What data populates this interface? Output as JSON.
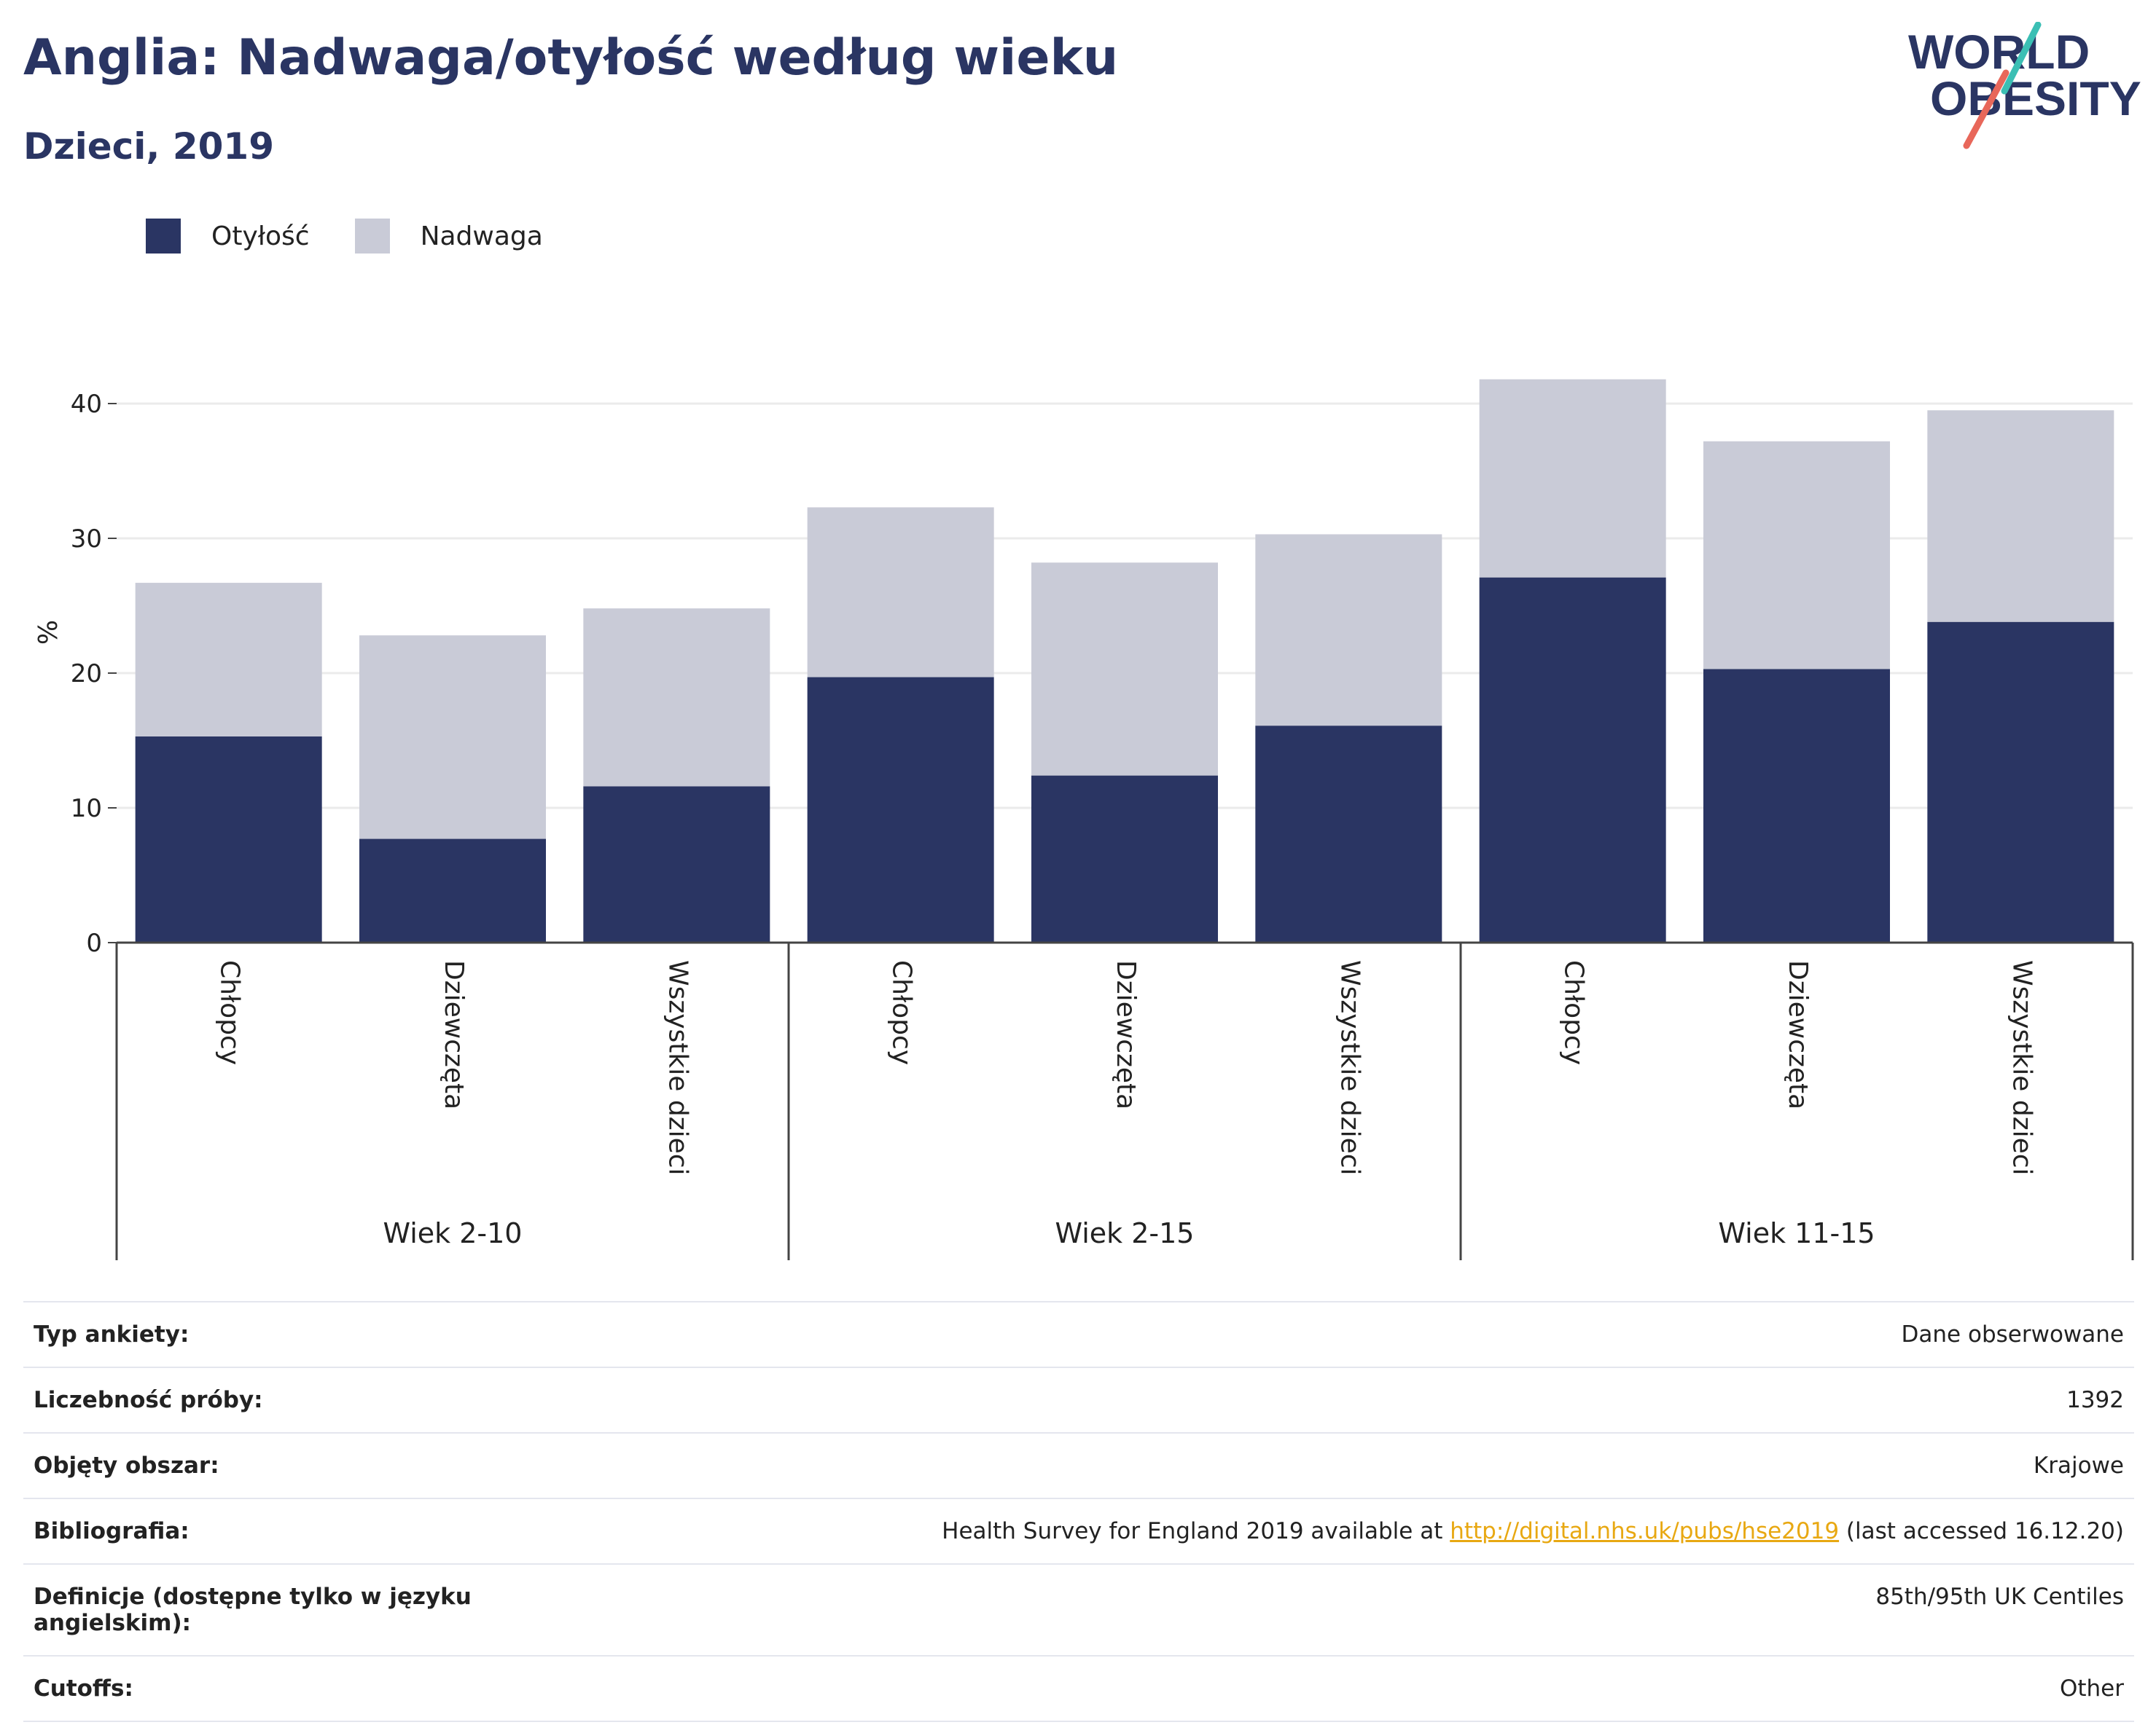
{
  "header": {
    "title": "Anglia: Nadwaga/otyłość według wieku",
    "subtitle": "Dzieci, 2019"
  },
  "logo": {
    "line1": "WORLD",
    "line2": "OBESITY",
    "accent_teal": "#3bbfb4",
    "accent_coral": "#e8675a"
  },
  "colors": {
    "obesity": "#2a3563",
    "overweight": "#c9cbd7",
    "grid": "#ebebeb",
    "axis": "#444444",
    "link": "#e8a812"
  },
  "chart_data": {
    "type": "bar",
    "stacked": true,
    "ylabel": "%",
    "ylim": [
      0,
      44
    ],
    "yticks": [
      0,
      10,
      20,
      30,
      40
    ],
    "grid": true,
    "legend_position": "top-left",
    "groups": [
      {
        "label": "Wiek 2-10",
        "categories": [
          "Chłopcy",
          "Dziewczęta",
          "Wszystkie dzieci"
        ]
      },
      {
        "label": "Wiek 2-15",
        "categories": [
          "Chłopcy",
          "Dziewczęta",
          "Wszystkie dzieci"
        ]
      },
      {
        "label": "Wiek 11-15",
        "categories": [
          "Chłopcy",
          "Dziewczęta",
          "Wszystkie dzieci"
        ]
      }
    ],
    "series": [
      {
        "name": "Otyłość",
        "values": [
          15.3,
          7.7,
          11.6,
          19.7,
          12.4,
          16.1,
          27.1,
          20.3,
          23.8
        ]
      },
      {
        "name": "Nadwaga",
        "values": [
          11.4,
          15.1,
          13.2,
          12.6,
          15.8,
          14.2,
          14.7,
          16.9,
          15.7
        ]
      }
    ]
  },
  "info": {
    "rows": [
      {
        "label": "Typ ankiety:",
        "value": "Dane obserwowane"
      },
      {
        "label": "Liczebność próby:",
        "value": "1392"
      },
      {
        "label": "Objęty obszar:",
        "value": "Krajowe"
      },
      {
        "label": "Bibliografia:",
        "value_prefix": "Health Survey for England 2019 available at ",
        "link": "http://digital.nhs.uk/pubs/hse2019",
        "value_suffix": " (last accessed 16.12.20)"
      },
      {
        "label": "Definicje (dostępne tylko w języku angielskim):",
        "value": "85th/95th UK Centiles"
      },
      {
        "label": "Cutoffs:",
        "value": "Other"
      }
    ]
  }
}
